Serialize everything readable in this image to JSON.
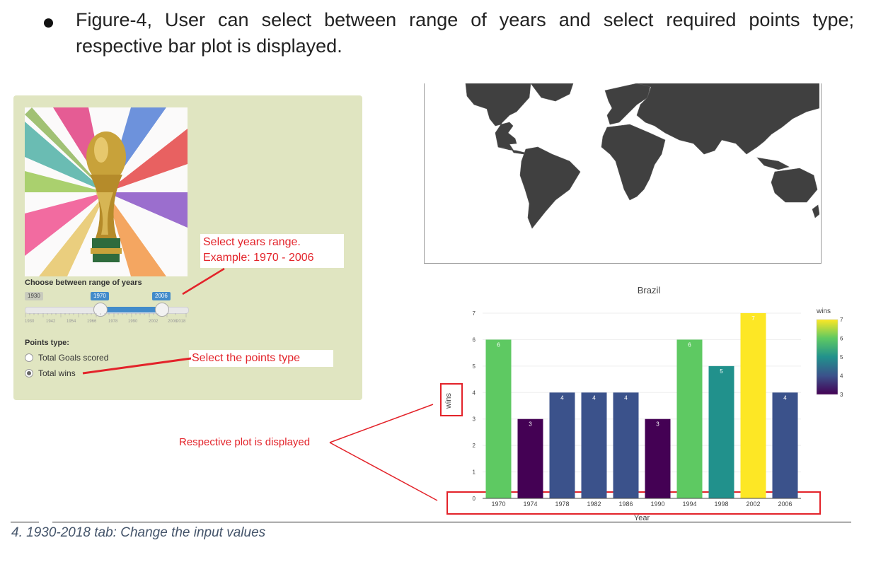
{
  "heading": {
    "text": "Figure-4, User can select between range of years and select required points type; respective bar plot is displayed."
  },
  "controls": {
    "range_label": "Choose between range of years",
    "slider": {
      "min_label": "1930",
      "low_label": "1970",
      "high_label": "2006",
      "tick_labels": [
        "1930",
        "1942",
        "1954",
        "1966",
        "1978",
        "1990",
        "2002",
        "2008",
        "2018"
      ]
    },
    "points_label": "Points type:",
    "options": [
      {
        "label": "Total Goals scored",
        "selected": false
      },
      {
        "label": "Total wins",
        "selected": true
      }
    ]
  },
  "annotations": {
    "years_note_line1": "Select years range.",
    "years_note_line2": "Example: 1970 - 2006",
    "points_note": "Select the points type",
    "plot_note": "Respective plot is displayed"
  },
  "colors": {
    "panel_bg": "#e0e5c1",
    "accent": "#428bca",
    "annotation": "#e3232a",
    "map_land": "#404040"
  },
  "chart_data": {
    "type": "bar",
    "title": "Brazil",
    "xlabel": "Year",
    "ylabel": "wins",
    "categories": [
      "1970",
      "1974",
      "1978",
      "1982",
      "1986",
      "1990",
      "1994",
      "1998",
      "2002",
      "2006"
    ],
    "values": [
      6,
      3,
      4,
      4,
      4,
      3,
      6,
      5,
      7,
      4
    ],
    "colors": [
      "#5ec962",
      "#440154",
      "#3b528b",
      "#3b528b",
      "#3b528b",
      "#440154",
      "#5ec962",
      "#21918c",
      "#fde725",
      "#3b528b"
    ],
    "ylim": [
      0,
      7
    ],
    "yticks": [
      "0",
      "1",
      "2",
      "3",
      "4",
      "5",
      "6",
      "7"
    ],
    "legend": {
      "title": "wins",
      "ticks": [
        "7",
        "6",
        "5",
        "4",
        "3"
      ],
      "placement": "right"
    }
  },
  "caption": "4. 1930-2018 tab: Change the input values"
}
